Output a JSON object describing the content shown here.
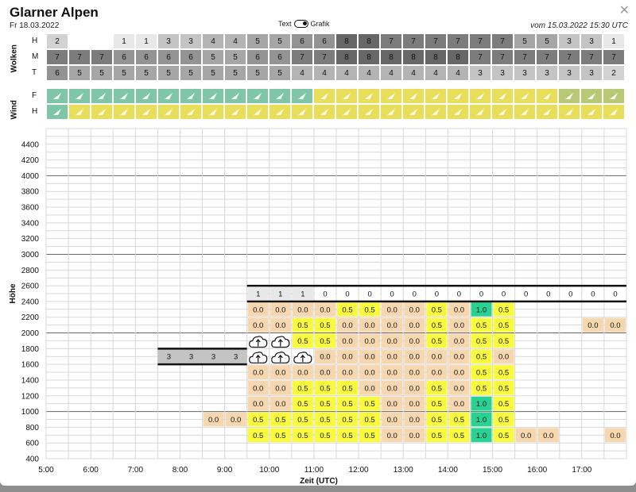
{
  "header": {
    "title": "Glarner Alpen",
    "date": "Fr 18.03.2022",
    "toggle_left": "Text",
    "toggle_right": "Grafik",
    "issued": "vom 15.03.2022 15:30 UTC",
    "close_icon": "close-icon"
  },
  "clouds": {
    "label": "Wolken",
    "rows": [
      {
        "label": "H",
        "values": [
          "2",
          "",
          "",
          "1",
          "1",
          "3",
          "3",
          "4",
          "4",
          "5",
          "5",
          "6",
          "6",
          "8",
          "8",
          "7",
          "7",
          "7",
          "7",
          "7",
          "7",
          "5",
          "5",
          "3",
          "3",
          "1"
        ]
      },
      {
        "label": "M",
        "values": [
          "7",
          "7",
          "7",
          "6",
          "6",
          "6",
          "6",
          "5",
          "5",
          "6",
          "6",
          "7",
          "7",
          "8",
          "8",
          "8",
          "8",
          "8",
          "8",
          "7",
          "7",
          "7",
          "7",
          "7",
          "7",
          "7"
        ]
      },
      {
        "label": "T",
        "values": [
          "6",
          "5",
          "5",
          "5",
          "5",
          "5",
          "5",
          "5",
          "5",
          "5",
          "5",
          "4",
          "4",
          "4",
          "4",
          "4",
          "4",
          "4",
          "4",
          "3",
          "3",
          "3",
          "3",
          "3",
          "3",
          "2"
        ]
      }
    ]
  },
  "wind": {
    "label": "Wind",
    "rows": [
      {
        "label": "F",
        "colors": [
          "green",
          "green",
          "green",
          "green",
          "green",
          "green",
          "green",
          "green",
          "green",
          "green",
          "green",
          "green",
          "yellow",
          "yellow",
          "yellow",
          "yellow",
          "yellow",
          "yellow",
          "yellow",
          "yellow",
          "yellow",
          "yellow",
          "yellow",
          "olive",
          "olive",
          "olive"
        ]
      },
      {
        "label": "H",
        "colors": [
          "green",
          "yellow",
          "yellow",
          "yellow",
          "yellow",
          "yellow",
          "yellow",
          "yellow",
          "yellow",
          "yellow",
          "yellow",
          "yellow",
          "yellow",
          "yellow",
          "yellow",
          "yellow",
          "yellow",
          "yellow",
          "yellow",
          "yellow",
          "yellow",
          "yellow",
          "yellow",
          "yellow",
          "yellow",
          "yellow"
        ]
      }
    ],
    "icon": "wind-arrow-icon"
  },
  "colors": {
    "c0": "#ffffff",
    "c1": "#e8e8e8",
    "c3": "#c4c4c4",
    "c4": "#b4b4b4",
    "c5": "#a6a6a6",
    "c6": "#939393",
    "c7": "#7c7c7c",
    "c8": "#676767",
    "c2": "#d2d2d2",
    "wind_green": "#7fc6a8",
    "wind_yellow": "#e8de5a",
    "wind_olive": "#b9c874",
    "ice_00": "#f7d7b0",
    "ice_05": "#f9f93e",
    "ice_10": "#29d192"
  },
  "chart_data": {
    "type": "heatmap",
    "xlabel": "Zeit (UTC)",
    "ylabel": "Höhe",
    "x_ticks": [
      "5:00",
      "6:00",
      "7:00",
      "8:00",
      "9:00",
      "10:00",
      "11:00",
      "12:00",
      "13:00",
      "14:00",
      "15:00",
      "16:00",
      "17:00"
    ],
    "y_ticks": [
      400,
      600,
      800,
      1000,
      1200,
      1400,
      1600,
      1800,
      2000,
      2200,
      2400,
      2600,
      2800,
      3000,
      3200,
      3400,
      3600,
      3800,
      4000,
      4200,
      4400
    ],
    "ylim": [
      400,
      4600
    ],
    "time_range": [
      "5:00",
      "18:00"
    ],
    "slot_hours": 0.5,
    "cloud_top_band": {
      "label": "levels 2400–2600",
      "start": "9:30",
      "values": [
        "1",
        "1",
        "1",
        "0",
        "0",
        "0",
        "0",
        "0",
        "0",
        "0",
        "0",
        "0",
        "0",
        "0",
        "0",
        "0",
        "0"
      ]
    },
    "cloud_band": {
      "start": "7:30",
      "end": "9:30",
      "values": [
        "3",
        "3",
        "3",
        "3"
      ],
      "altitude": [
        1600,
        1800
      ]
    },
    "icing": [
      {
        "alt": 2200,
        "start": "9:30",
        "values": [
          "0.0",
          "0.0",
          "0.0",
          "0.0",
          "0.5",
          "0.5",
          "0.0",
          "0.0",
          "0.5",
          "0.0",
          "1.0",
          "0.5"
        ]
      },
      {
        "alt": 2000,
        "start": "9:30",
        "values": [
          "0.0",
          "0.0",
          "0.5",
          "0.5",
          "0.0",
          "0.0",
          "0.0",
          "0.0",
          "0.5",
          "0.0",
          "0.5",
          "0.5"
        ]
      },
      {
        "alt": 2000,
        "start": "17:00",
        "values": [
          "0.0",
          "0.0"
        ]
      },
      {
        "alt": 1800,
        "start": "9:30",
        "values": [
          "cloud",
          "cloud",
          "0.5",
          "0.5",
          "0.0",
          "0.0",
          "0.0",
          "0.0",
          "0.5",
          "0.0",
          "0.5",
          "0.5"
        ]
      },
      {
        "alt": 1600,
        "start": "9:30",
        "values": [
          "cloud",
          "cloud",
          "cloud",
          "0.0",
          "0.0",
          "0.0",
          "0.0",
          "0.0",
          "0.0",
          "0.0",
          "0.5",
          "0.0"
        ]
      },
      {
        "alt": 1400,
        "start": "9:30",
        "values": [
          "0.0",
          "0.0",
          "0.0",
          "0.0",
          "0.0",
          "0.0",
          "0.0",
          "0.0",
          "0.0",
          "0.0",
          "0.5",
          "0.5"
        ]
      },
      {
        "alt": 1200,
        "start": "9:30",
        "values": [
          "0.0",
          "0.0",
          "0.5",
          "0.5",
          "0.5",
          "0.0",
          "0.0",
          "0.0",
          "0.5",
          "0.0",
          "0.5",
          "0.5"
        ]
      },
      {
        "alt": 1000,
        "start": "9:30",
        "values": [
          "0.0",
          "0.0",
          "0.5",
          "0.5",
          "0.5",
          "0.5",
          "0.0",
          "0.0",
          "0.5",
          "0.0",
          "1.0",
          "0.5"
        ]
      },
      {
        "alt": 800,
        "start": "8:30",
        "values": [
          "0.0",
          "0.0",
          "0.5",
          "0.5",
          "0.5",
          "0.5",
          "0.5",
          "0.5",
          "0.0",
          "0.0",
          "0.5",
          "0.5",
          "1.0",
          "0.5"
        ]
      },
      {
        "alt": 600,
        "start": "9:30",
        "values": [
          "0.5",
          "0.5",
          "0.5",
          "0.5",
          "0.5",
          "0.5",
          "0.0",
          "0.0",
          "0.5",
          "0.5",
          "1.0",
          "0.5",
          "0.0",
          "0.0"
        ]
      },
      {
        "alt": 600,
        "start": "17:30",
        "values": [
          "0.0"
        ]
      }
    ],
    "cloud_icon": "cloud-icing-icon"
  }
}
